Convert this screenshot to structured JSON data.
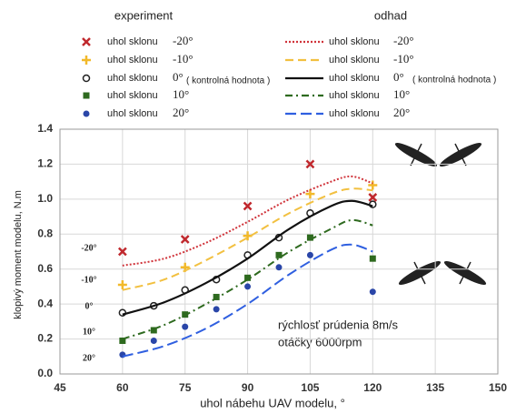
{
  "chart_data": {
    "type": "line",
    "legend_titles": [
      "experiment",
      "odhad"
    ],
    "x_label": "uhol nábehu UAV modelu, °",
    "y_label": "klopivý moment modelu, N.m",
    "annotations": [
      "rýchlosť prúdenia  8m/s",
      "otáčky 6000rpm"
    ],
    "xlim": [
      45,
      150
    ],
    "xticks": [
      45,
      60,
      75,
      90,
      105,
      120,
      135,
      150
    ],
    "ylim": [
      0,
      1.4
    ],
    "yticks": [
      {
        "value": 0,
        "label": "0.0"
      },
      0.2,
      0.4,
      0.6,
      0.8,
      {
        "value": 1,
        "label": "1.0"
      },
      1.2,
      1.4
    ],
    "grid": true,
    "series": [
      {
        "name": "uhol sklonu",
        "angle": "-20°",
        "kind": "scatter",
        "marker": "x",
        "color": "#c0282d",
        "x": [
          60,
          75,
          90,
          105,
          120
        ],
        "values": [
          0.7,
          0.77,
          0.96,
          1.2,
          1.01
        ]
      },
      {
        "name": "uhol sklonu",
        "angle": "-10°",
        "kind": "scatter",
        "marker": "plus",
        "color": "#f2b92a",
        "x": [
          60,
          75,
          90,
          105,
          120
        ],
        "values": [
          0.51,
          0.61,
          0.79,
          1.03,
          1.08
        ]
      },
      {
        "name": "uhol sklonu",
        "angle": "0°",
        "note": "( kontrolná hodnota )",
        "kind": "scatter",
        "marker": "circle-open",
        "color": "#222222",
        "x": [
          60,
          67.5,
          75,
          82.5,
          90,
          97.5,
          105,
          120
        ],
        "values": [
          0.35,
          0.39,
          0.48,
          0.54,
          0.68,
          0.78,
          0.92,
          0.97
        ]
      },
      {
        "name": "uhol sklonu",
        "angle": "10°",
        "kind": "scatter",
        "marker": "square",
        "color": "#2e6a1f",
        "x": [
          60,
          67.5,
          75,
          82.5,
          90,
          97.5,
          105,
          120
        ],
        "values": [
          0.19,
          0.25,
          0.34,
          0.44,
          0.55,
          0.68,
          0.78,
          0.66
        ]
      },
      {
        "name": "uhol sklonu",
        "angle": "20°",
        "kind": "scatter",
        "marker": "circle",
        "color": "#2a46a8",
        "x": [
          60,
          67.5,
          75,
          82.5,
          90,
          97.5,
          105,
          120
        ],
        "values": [
          0.11,
          0.19,
          0.27,
          0.37,
          0.5,
          0.61,
          0.68,
          0.47
        ]
      },
      {
        "name": "uhol sklonu",
        "angle": "-20°",
        "kind": "line",
        "dash": "2 2",
        "color": "#d0333a",
        "x": [
          60,
          70,
          80,
          90,
          100,
          110,
          115,
          120
        ],
        "values": [
          0.62,
          0.66,
          0.75,
          0.87,
          1.0,
          1.1,
          1.13,
          1.09
        ]
      },
      {
        "name": "uhol sklonu",
        "angle": "-10°",
        "kind": "line",
        "dash": "9 5",
        "color": "#f2c040",
        "x": [
          60,
          70,
          80,
          90,
          100,
          110,
          115,
          120
        ],
        "values": [
          0.48,
          0.54,
          0.65,
          0.78,
          0.92,
          1.03,
          1.06,
          1.05
        ]
      },
      {
        "name": "uhol sklonu",
        "angle": "0°",
        "note": "( kontrolná hodnota )",
        "kind": "line",
        "dash": "",
        "color": "#111111",
        "x": [
          60,
          70,
          80,
          90,
          100,
          110,
          115,
          120
        ],
        "values": [
          0.34,
          0.41,
          0.52,
          0.66,
          0.83,
          0.96,
          0.99,
          0.96
        ]
      },
      {
        "name": "uhol sklonu",
        "angle": "10°",
        "kind": "line",
        "dash": "8 4 2 4",
        "color": "#2e6a1f",
        "x": [
          60,
          70,
          80,
          90,
          100,
          110,
          115,
          120
        ],
        "values": [
          0.2,
          0.28,
          0.4,
          0.54,
          0.7,
          0.83,
          0.88,
          0.85
        ]
      },
      {
        "name": "uhol sklonu",
        "angle": "20°",
        "kind": "line",
        "dash": "12 5",
        "color": "#2f5fe0",
        "x": [
          60,
          70,
          80,
          90,
          100,
          110,
          115,
          120
        ],
        "values": [
          0.1,
          0.16,
          0.26,
          0.4,
          0.57,
          0.71,
          0.74,
          0.7
        ]
      }
    ]
  }
}
